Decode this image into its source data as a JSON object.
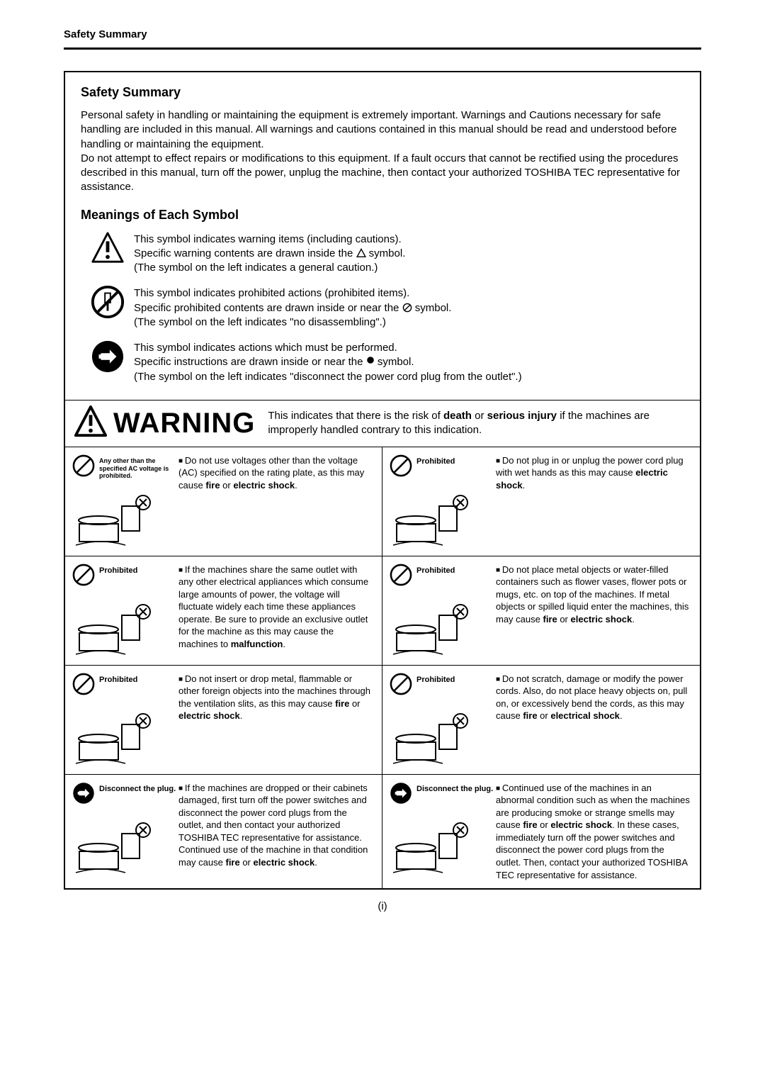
{
  "header": "Safety Summary",
  "title": "Safety Summary",
  "intro": "Personal safety in handling or maintaining the equipment is extremely important.  Warnings and Cautions necessary for safe handling are included in this manual.  All warnings and cautions contained in this manual should be read and understood before handling or maintaining the equipment.\nDo not attempt to effect repairs or modifications to this equipment.  If a fault occurs that cannot be rectified using the procedures described in this manual, turn off the power, unplug the machine, then contact your authorized TOSHIBA TEC representative for assistance.",
  "subTitle": "Meanings of Each Symbol",
  "symbols": [
    {
      "iconType": "warning-triangle",
      "lines": "This symbol indicates warning items (including cautions).\nSpecific warning contents are drawn inside the {TRI} symbol.\n(The symbol on the left indicates a general caution.)"
    },
    {
      "iconType": "prohibited-disassemble",
      "lines": "This symbol indicates prohibited actions (prohibited items).\nSpecific prohibited contents are drawn inside or near the {CIRC} symbol.\n(The symbol on the left indicates \"no disassembling\".)"
    },
    {
      "iconType": "action-plug",
      "lines": "This symbol indicates actions which must be performed.\nSpecific instructions are drawn inside or near the {DOT} symbol.\n(The symbol on the left indicates \"disconnect the power cord plug from the outlet\".)"
    }
  ],
  "warningWord": "WARNING",
  "warningDesc": "This indicates that there is the risk of <b>death</b> or <b>serious injury</b> if the machines are improperly handled contrary to this indication.",
  "cells": [
    {
      "iconType": "prohibited",
      "label": "Any other than the specified AC voltage is prohibited.",
      "labelSmall": true,
      "text": "Do not use voltages other than the voltage (AC) specified on the rating plate, as this may cause <b>fire</b> or <b>electric shock</b>."
    },
    {
      "iconType": "prohibited",
      "label": "Prohibited",
      "text": "Do not plug in or unplug the power cord plug with wet hands as this may cause <b>electric shock</b>."
    },
    {
      "iconType": "prohibited",
      "label": "Prohibited",
      "text": "If the machines share the same outlet with any other electrical appliances which consume large amounts of power, the voltage will fluctuate widely each time these appliances operate.  Be sure to provide an exclusive outlet for the machine as this may cause the machines to <b>malfunction</b>."
    },
    {
      "iconType": "prohibited",
      "label": "Prohibited",
      "text": "Do not place metal objects or water-filled containers such as flower vases, flower pots or mugs, etc. on top of the machines.  If metal objects or spilled liquid enter the machines, this may cause <b>fire</b> or <b>electric shock</b>."
    },
    {
      "iconType": "prohibited",
      "label": "Prohibited",
      "text": "Do not insert or drop metal, flammable or other foreign objects into the machines through the ventilation slits, as this may cause <b>fire</b> or <b>electric shock</b>."
    },
    {
      "iconType": "prohibited",
      "label": "Prohibited",
      "text": "Do not scratch, damage or modify the power cords.  Also, do not place heavy objects on, pull on, or excessively bend the cords, as this may cause <b>fire</b> or <b>electrical shock</b>."
    },
    {
      "iconType": "action-plug",
      "label": "Disconnect the plug.",
      "text": "If the machines are dropped or their cabinets damaged, first turn off the power switches and disconnect the power cord plugs from the outlet, and then contact your authorized TOSHIBA TEC representative for assistance.  Continued use of the machine in that condition may cause <b>fire</b> or <b>electric shock</b>."
    },
    {
      "iconType": "action-plug",
      "label": "Disconnect the plug.",
      "text": "Continued use of the machines in an abnormal condition such as when the machines are producing smoke or strange smells may cause <b>fire</b> or <b>electric shock</b>.  In these cases, immediately turn off the power switches and disconnect the power cord plugs from the outlet.  Then, contact your authorized TOSHIBA TEC representative for assistance."
    }
  ],
  "pageNumber": "(i)",
  "colors": {
    "black": "#000000",
    "white": "#ffffff"
  }
}
